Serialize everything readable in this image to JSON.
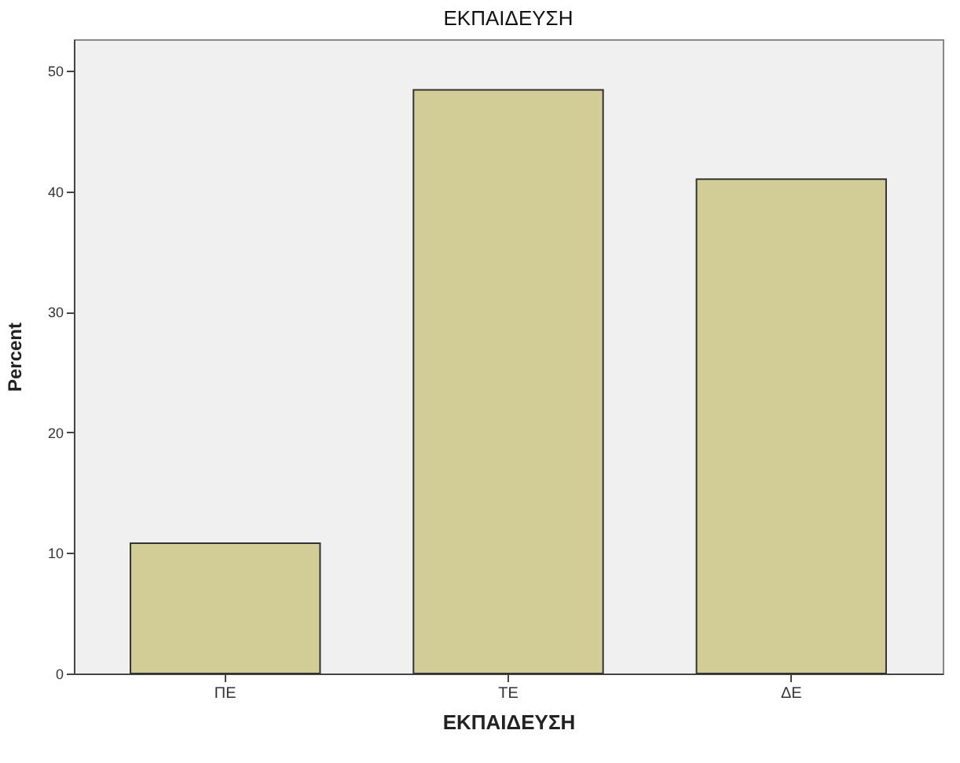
{
  "chart_data": {
    "type": "bar",
    "title": "ΕΚΠΑΙΔΕΥΣΗ",
    "xlabel": "ΕΚΠΑΙΔΕΥΣΗ",
    "ylabel": "Percent",
    "categories": [
      "ΠΕ",
      "ΤΕ",
      "ΔΕ"
    ],
    "values": [
      10.8,
      48.4,
      41.0
    ],
    "color": "#d2cd96",
    "ylim": [
      0,
      52.6
    ],
    "yticks": [
      0,
      10,
      20,
      30,
      40,
      50
    ],
    "grid": false
  }
}
